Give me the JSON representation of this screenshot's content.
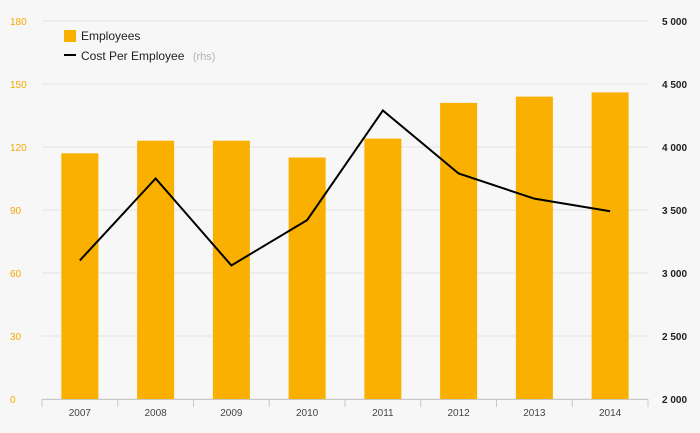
{
  "chart_data": {
    "type": "bar",
    "categories": [
      "2007",
      "2008",
      "2009",
      "2010",
      "2011",
      "2012",
      "2013",
      "2014"
    ],
    "series": [
      {
        "name": "Employees",
        "type": "bar",
        "axis": "left",
        "color": "#f9b000",
        "values": [
          117,
          123,
          123,
          115,
          124,
          141,
          144,
          146
        ]
      },
      {
        "name": "Cost Per Employee",
        "name_suffix": "(rhs)",
        "type": "line",
        "axis": "right",
        "color": "#000000",
        "values": [
          3100,
          3750,
          3060,
          3420,
          4290,
          3790,
          3590,
          3490
        ]
      }
    ],
    "y_left": {
      "lim": [
        0,
        180
      ],
      "ticks": [
        0,
        30,
        60,
        90,
        120,
        150,
        180
      ],
      "tick_labels": [
        "0",
        "30",
        "60",
        "90",
        "120",
        "150",
        "180"
      ],
      "color": "#f5a800"
    },
    "y_right": {
      "lim": [
        2000,
        5000
      ],
      "ticks": [
        2000,
        2500,
        3000,
        3500,
        4000,
        4500,
        5000
      ],
      "tick_labels": [
        "2 000",
        "2 500",
        "3 000",
        "3 500",
        "4 000",
        "4 500",
        "5 000"
      ],
      "color": "#222222"
    },
    "legend": {
      "placement": "top-left"
    },
    "grid": true,
    "title": "",
    "xlabel": "",
    "ylabel": ""
  }
}
